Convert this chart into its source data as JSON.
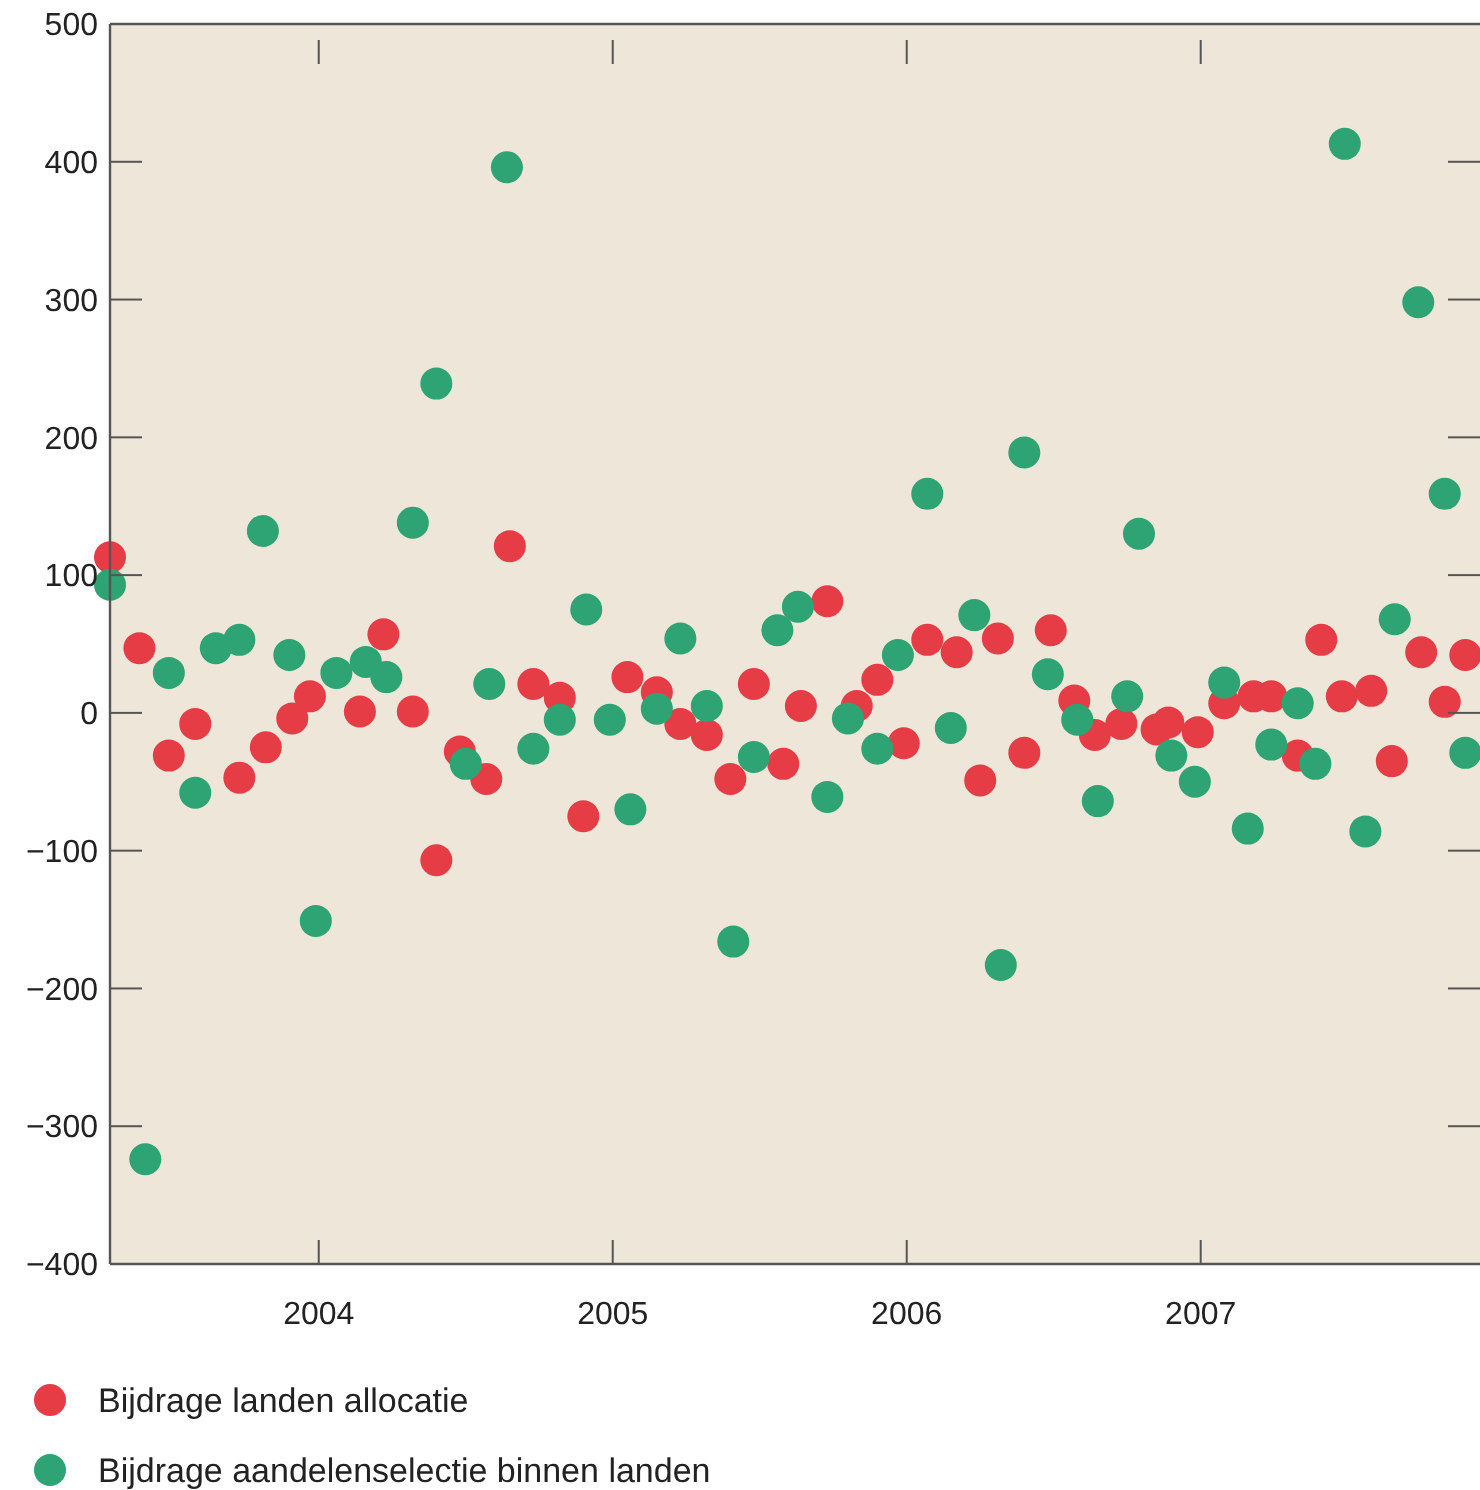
{
  "chart_data": {
    "type": "scatter",
    "marker": "circle",
    "legend": "bottom",
    "grid": false,
    "xlim": [
      2003.29,
      2007.95
    ],
    "xticks": [
      2004,
      2005,
      2006,
      2007
    ],
    "ylim": [
      -400,
      500
    ],
    "yticks": [
      -400,
      -300,
      -200,
      -100,
      0,
      100,
      200,
      300,
      400,
      500
    ],
    "series": [
      {
        "name": "Bijdrage landen allocatie",
        "color": "#e63c46",
        "x": [
          2003.29,
          2003.39,
          2003.49,
          2003.58,
          2003.73,
          2003.82,
          2003.91,
          2003.97,
          2004.14,
          2004.22,
          2004.32,
          2004.4,
          2004.48,
          2004.57,
          2004.65,
          2004.73,
          2004.82,
          2004.9,
          2005.05,
          2005.15,
          2005.23,
          2005.32,
          2005.4,
          2005.48,
          2005.58,
          2005.64,
          2005.73,
          2005.83,
          2005.9,
          2005.99,
          2006.07,
          2006.17,
          2006.25,
          2006.31,
          2006.4,
          2006.49,
          2006.57,
          2006.64,
          2006.73,
          2006.85,
          2006.89,
          2006.99,
          2007.08,
          2007.18,
          2007.24,
          2007.33,
          2007.41,
          2007.48,
          2007.58,
          2007.65,
          2007.75,
          2007.83,
          2007.9
        ],
        "values": [
          113,
          47,
          -31,
          -8,
          -47,
          -25,
          -4,
          12,
          1,
          57,
          1,
          -107,
          -28,
          -48,
          121,
          21,
          11,
          -75,
          26,
          15,
          -8,
          -16,
          -48,
          21,
          -37,
          5,
          81,
          5,
          24,
          -22,
          53,
          44,
          -49,
          54,
          -29,
          60,
          9,
          -16,
          -8,
          -12,
          -7,
          -14,
          7,
          12,
          12,
          -31,
          53,
          12,
          16,
          -35,
          44,
          8,
          42
        ]
      },
      {
        "name": "Bijdrage aandelenselectie binnen landen",
        "color": "#2ea374",
        "x": [
          2003.29,
          2003.41,
          2003.49,
          2003.58,
          2003.65,
          2003.73,
          2003.81,
          2003.9,
          2003.99,
          2004.06,
          2004.16,
          2004.23,
          2004.32,
          2004.4,
          2004.5,
          2004.58,
          2004.64,
          2004.73,
          2004.82,
          2004.91,
          2004.99,
          2005.06,
          2005.15,
          2005.23,
          2005.32,
          2005.41,
          2005.48,
          2005.56,
          2005.63,
          2005.73,
          2005.8,
          2005.9,
          2005.97,
          2006.07,
          2006.15,
          2006.23,
          2006.32,
          2006.4,
          2006.48,
          2006.58,
          2006.65,
          2006.75,
          2006.79,
          2006.9,
          2006.98,
          2007.08,
          2007.16,
          2007.24,
          2007.33,
          2007.39,
          2007.49,
          2007.56,
          2007.66,
          2007.74,
          2007.83,
          2007.9
        ],
        "values": [
          93,
          -324,
          29,
          -58,
          47,
          53,
          132,
          42,
          -151,
          29,
          37,
          26,
          138,
          239,
          -37,
          21,
          396,
          -26,
          -5,
          75,
          -5,
          -70,
          3,
          54,
          5,
          -166,
          -32,
          60,
          77,
          -61,
          -4,
          -26,
          42,
          159,
          -11,
          71,
          -183,
          189,
          28,
          -5,
          -64,
          12,
          130,
          -31,
          -50,
          22,
          -84,
          -23,
          7,
          -37,
          413,
          -86,
          68,
          298,
          159,
          -29
        ]
      }
    ]
  }
}
